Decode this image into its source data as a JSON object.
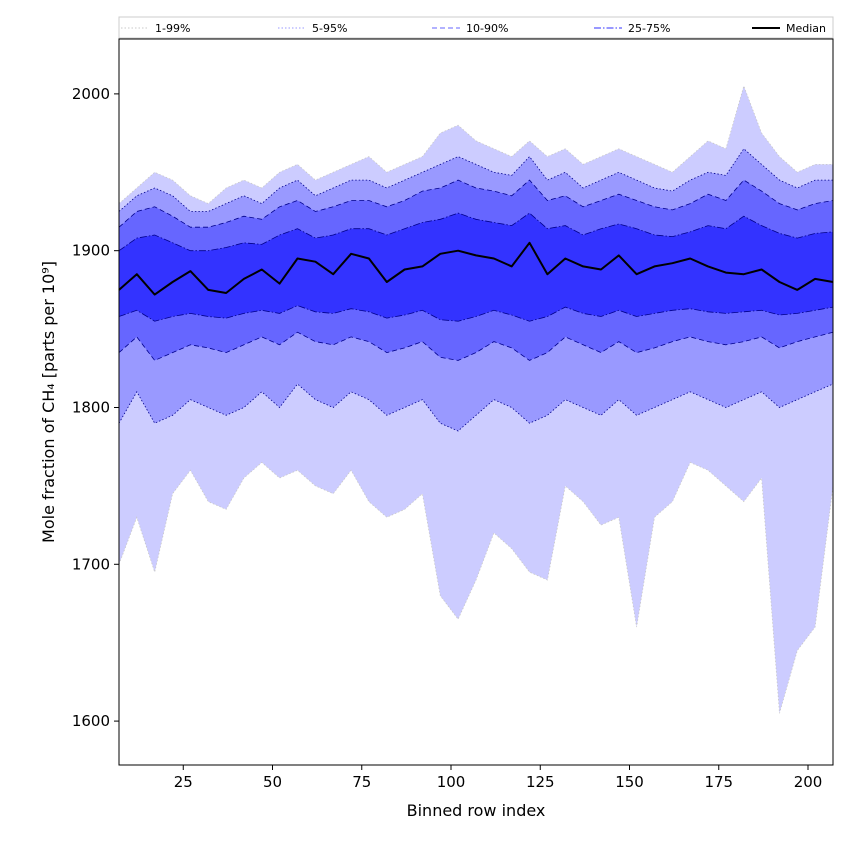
{
  "chart_data": {
    "type": "area",
    "xlabel": "Binned row index",
    "ylabel": "Mole fraction of CH₄ [parts per 10⁹]",
    "xlim": [
      7,
      207
    ],
    "ylim": [
      1572,
      2035
    ],
    "xticks": [
      25,
      50,
      75,
      100,
      125,
      150,
      175,
      200
    ],
    "yticks": [
      1600,
      1700,
      1800,
      1900,
      2000
    ],
    "grid": false,
    "legend_position": "top",
    "x": [
      7,
      12,
      17,
      22,
      27,
      32,
      37,
      42,
      47,
      52,
      57,
      62,
      67,
      72,
      77,
      82,
      87,
      92,
      97,
      102,
      107,
      112,
      117,
      122,
      127,
      132,
      137,
      142,
      147,
      152,
      157,
      162,
      167,
      172,
      177,
      182,
      187,
      192,
      197,
      202,
      207
    ],
    "bands": [
      {
        "name": "1-99%",
        "color": "#ccccff",
        "edge_color": "#c8c8c8",
        "edge_style": "dotted",
        "lower": [
          1700,
          1730,
          1695,
          1745,
          1760,
          1740,
          1735,
          1755,
          1765,
          1755,
          1760,
          1750,
          1745,
          1760,
          1740,
          1730,
          1735,
          1745,
          1680,
          1665,
          1690,
          1720,
          1710,
          1695,
          1690,
          1750,
          1740,
          1725,
          1730,
          1660,
          1730,
          1740,
          1765,
          1760,
          1750,
          1740,
          1755,
          1605,
          1645,
          1660,
          1750
        ],
        "upper": [
          1930,
          1940,
          1950,
          1945,
          1935,
          1930,
          1940,
          1945,
          1940,
          1950,
          1955,
          1945,
          1950,
          1955,
          1960,
          1950,
          1955,
          1960,
          1975,
          1980,
          1970,
          1965,
          1960,
          1970,
          1960,
          1965,
          1955,
          1960,
          1965,
          1960,
          1955,
          1950,
          1960,
          1970,
          1965,
          2005,
          1975,
          1960,
          1950,
          1955,
          1955
        ]
      },
      {
        "name": "5-95%",
        "color": "#9999ff",
        "edge_color": "#00008b",
        "edge_style": "dotted",
        "lower": [
          1790,
          1810,
          1790,
          1795,
          1805,
          1800,
          1795,
          1800,
          1810,
          1800,
          1815,
          1805,
          1800,
          1810,
          1805,
          1795,
          1800,
          1805,
          1790,
          1785,
          1795,
          1805,
          1800,
          1790,
          1795,
          1805,
          1800,
          1795,
          1805,
          1795,
          1800,
          1805,
          1810,
          1805,
          1800,
          1805,
          1810,
          1800,
          1805,
          1810,
          1815
        ],
        "upper": [
          1925,
          1935,
          1940,
          1935,
          1925,
          1925,
          1930,
          1935,
          1930,
          1940,
          1945,
          1935,
          1940,
          1945,
          1945,
          1940,
          1945,
          1950,
          1955,
          1960,
          1955,
          1950,
          1948,
          1960,
          1945,
          1950,
          1940,
          1945,
          1950,
          1945,
          1940,
          1938,
          1945,
          1950,
          1948,
          1965,
          1955,
          1945,
          1940,
          1945,
          1945
        ]
      },
      {
        "name": "10-90%",
        "color": "#6666ff",
        "edge_color": "#00008b",
        "edge_style": "dashed",
        "lower": [
          1835,
          1845,
          1830,
          1835,
          1840,
          1838,
          1835,
          1840,
          1845,
          1840,
          1848,
          1842,
          1840,
          1845,
          1842,
          1835,
          1838,
          1842,
          1832,
          1830,
          1835,
          1842,
          1838,
          1830,
          1835,
          1845,
          1840,
          1835,
          1842,
          1835,
          1838,
          1842,
          1845,
          1842,
          1840,
          1842,
          1845,
          1838,
          1842,
          1845,
          1848
        ],
        "upper": [
          1915,
          1925,
          1928,
          1922,
          1915,
          1915,
          1918,
          1922,
          1920,
          1928,
          1932,
          1925,
          1928,
          1932,
          1932,
          1928,
          1932,
          1938,
          1940,
          1945,
          1940,
          1938,
          1935,
          1945,
          1932,
          1935,
          1928,
          1932,
          1936,
          1932,
          1928,
          1926,
          1930,
          1936,
          1932,
          1945,
          1938,
          1930,
          1926,
          1930,
          1932
        ]
      },
      {
        "name": "25-75%",
        "color": "#3333ff",
        "edge_color": "#00008b",
        "edge_style": "dashdot",
        "lower": [
          1858,
          1862,
          1855,
          1858,
          1860,
          1858,
          1857,
          1860,
          1862,
          1860,
          1865,
          1861,
          1860,
          1863,
          1861,
          1857,
          1859,
          1862,
          1856,
          1855,
          1858,
          1862,
          1859,
          1855,
          1858,
          1864,
          1860,
          1858,
          1862,
          1858,
          1860,
          1862,
          1863,
          1861,
          1860,
          1861,
          1862,
          1859,
          1860,
          1862,
          1864
        ],
        "upper": [
          1900,
          1908,
          1910,
          1905,
          1900,
          1900,
          1902,
          1905,
          1904,
          1910,
          1914,
          1908,
          1910,
          1914,
          1914,
          1910,
          1914,
          1918,
          1920,
          1924,
          1920,
          1918,
          1916,
          1924,
          1914,
          1916,
          1910,
          1914,
          1917,
          1914,
          1910,
          1909,
          1912,
          1916,
          1914,
          1922,
          1916,
          1911,
          1908,
          1911,
          1912
        ]
      }
    ],
    "median": {
      "name": "Median",
      "color": "#000000",
      "values": [
        1875,
        1885,
        1872,
        1880,
        1887,
        1875,
        1873,
        1882,
        1888,
        1879,
        1895,
        1893,
        1885,
        1898,
        1895,
        1880,
        1888,
        1890,
        1898,
        1900,
        1897,
        1895,
        1890,
        1905,
        1885,
        1895,
        1890,
        1888,
        1897,
        1885,
        1890,
        1892,
        1895,
        1890,
        1886,
        1885,
        1888,
        1880,
        1875,
        1882,
        1880
      ]
    }
  }
}
